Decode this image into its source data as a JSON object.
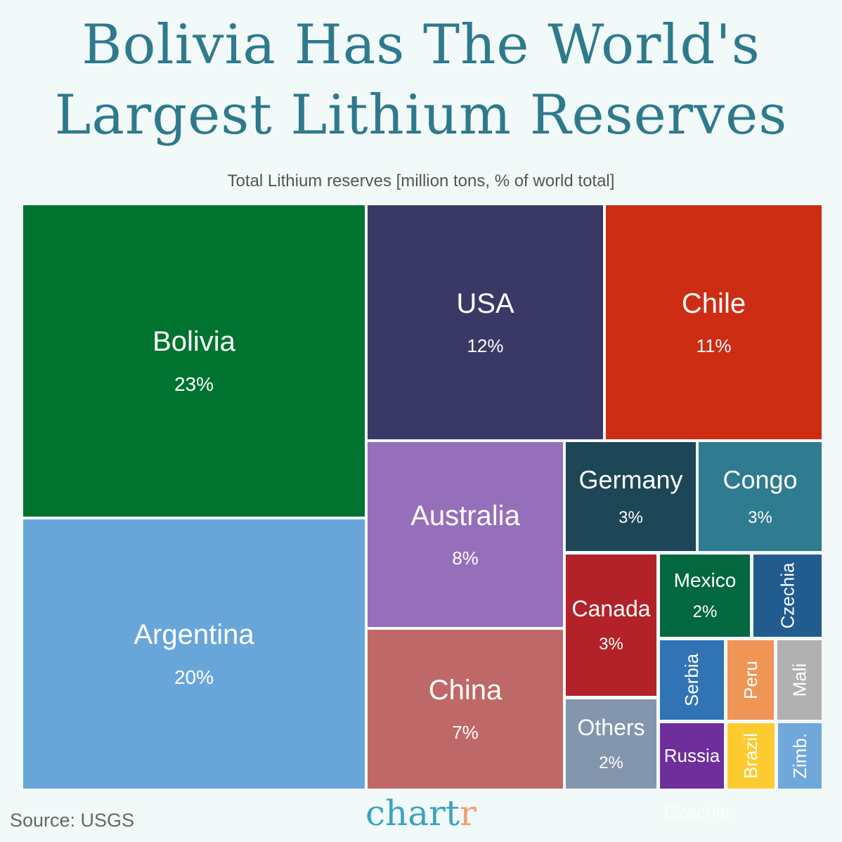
{
  "chart_data": {
    "type": "treemap",
    "title": "Bolivia Has The World's Largest Lithium Reserves",
    "subtitle": "Total Lithium reserves [million tons, % of world total]",
    "items": [
      {
        "name": "Bolivia",
        "pct": "23%",
        "value": 23,
        "color": "#00732f"
      },
      {
        "name": "Argentina",
        "pct": "20%",
        "value": 20,
        "color": "#68a6da"
      },
      {
        "name": "USA",
        "pct": "12%",
        "value": 12,
        "color": "#3a3966"
      },
      {
        "name": "Chile",
        "pct": "11%",
        "value": 11,
        "color": "#cc2d13"
      },
      {
        "name": "Australia",
        "pct": "8%",
        "value": 8,
        "color": "#966fba"
      },
      {
        "name": "China",
        "pct": "7%",
        "value": 7,
        "color": "#be6967"
      },
      {
        "name": "Germany",
        "pct": "3%",
        "value": 3,
        "color": "#1d4756"
      },
      {
        "name": "Congo",
        "pct": "3%",
        "value": 3,
        "color": "#2f7b90"
      },
      {
        "name": "Canada",
        "pct": "3%",
        "value": 3,
        "color": "#b32228"
      },
      {
        "name": "Others",
        "pct": "2%",
        "value": 2,
        "color": "#8496ad"
      },
      {
        "name": "Mexico",
        "pct": "2%",
        "value": 2,
        "color": "#03673f"
      },
      {
        "name": "Czechia",
        "pct": "",
        "value": null,
        "color": "#225c8f"
      },
      {
        "name": "Serbia",
        "pct": "",
        "value": null,
        "color": "#3174b6"
      },
      {
        "name": "Peru",
        "pct": "",
        "value": null,
        "color": "#ef9556"
      },
      {
        "name": "Mali",
        "pct": "",
        "value": null,
        "color": "#b1b1b1"
      },
      {
        "name": "Russia",
        "pct": "",
        "value": null,
        "color": "#6e2f9d"
      },
      {
        "name": "Brazil",
        "pct": "",
        "value": null,
        "color": "#fdcb2f"
      },
      {
        "name": "Zimb.",
        "pct": "",
        "value": null,
        "color": "#70a8dc"
      }
    ]
  },
  "title_line1": "Bolivia Has The World's",
  "title_line2": "Largest Lithium Reserves",
  "subtitle": "Total Lithium reserves [million tons, % of world total]",
  "source": "Source: USGS",
  "logo": {
    "main": "chart",
    "accent": "r"
  },
  "ghost_label": "Czechia"
}
